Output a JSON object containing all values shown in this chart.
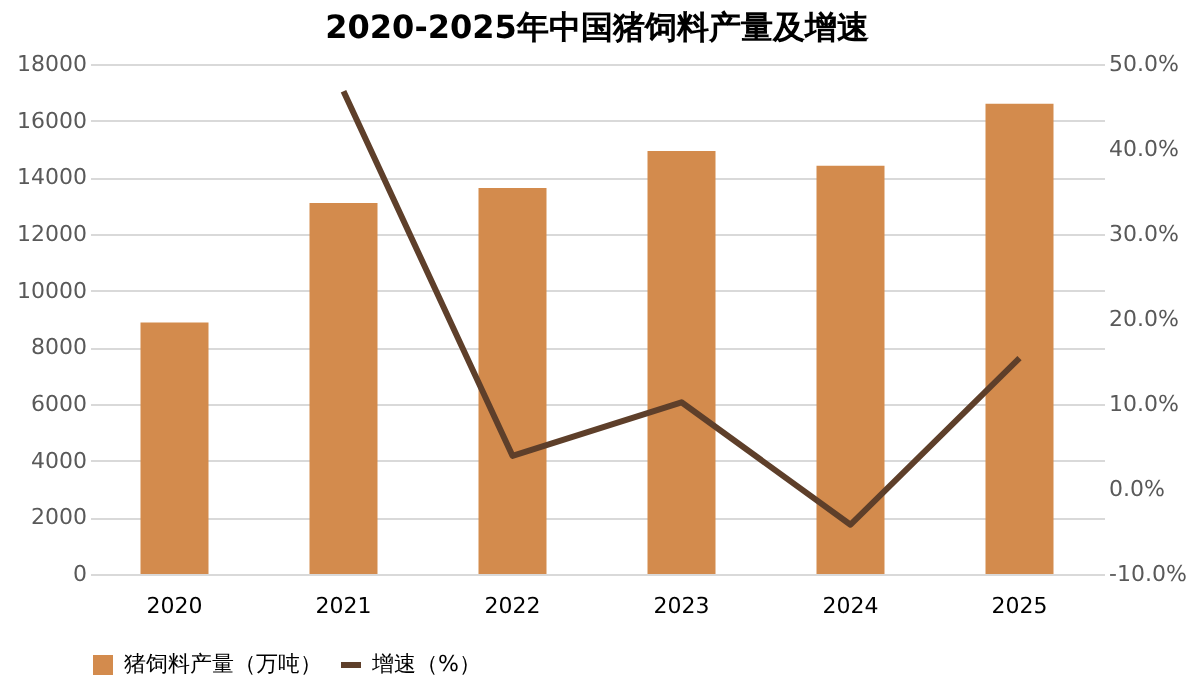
{
  "chart_data": {
    "type": "bar",
    "title": "2020-2025年中国猪饲料产量及增速",
    "categories": [
      "2020",
      "2021",
      "2022",
      "2023",
      "2024",
      "2025"
    ],
    "series": [
      {
        "name": "猪饲料产量（万吨）",
        "color": "#d38b4d",
        "values": [
          8880,
          13090,
          13620,
          14930,
          14410,
          16600
        ]
      },
      {
        "name": "增速（%）",
        "type": "line",
        "axis": "y2",
        "color": "#5e3f2a",
        "values": [
          null,
          46.8,
          3.9,
          10.2,
          -4.2,
          15.4
        ]
      }
    ],
    "ylim": [
      0,
      18000
    ],
    "yticks": [
      0,
      2000,
      4000,
      6000,
      8000,
      10000,
      12000,
      14000,
      16000,
      18000
    ],
    "y2lim": [
      -10,
      50
    ],
    "y2ticks": [
      {
        "value": -10,
        "label": "-10.0%"
      },
      {
        "value": 0,
        "label": "0.0%"
      },
      {
        "value": 10,
        "label": "10.0%"
      },
      {
        "value": 20,
        "label": "20.0%"
      },
      {
        "value": 30,
        "label": "30.0%"
      },
      {
        "value": 40,
        "label": "40.0%"
      },
      {
        "value": 50,
        "label": "50.0%"
      }
    ],
    "grid": "y",
    "legend": "bottom",
    "marker": "none",
    "line_style": "solid"
  }
}
